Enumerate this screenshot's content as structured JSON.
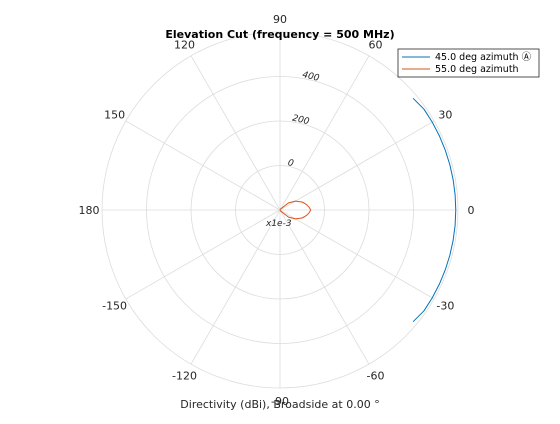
{
  "chart_data": {
    "type": "polar-line",
    "title": "Elevation Cut (frequency = 500 MHz)",
    "xlabel": "Directivity (dBi), Broadside at 0.00 °",
    "angle_ticks": [
      "90",
      "60",
      "30",
      "0",
      "-30",
      "-60",
      "-90",
      "-120",
      "-150",
      "180",
      "150",
      "120"
    ],
    "angle_tick_values": [
      90,
      60,
      30,
      0,
      -30,
      -60,
      -90,
      -120,
      -150,
      180,
      150,
      120
    ],
    "radial_ticks": [
      "0",
      "200",
      "400"
    ],
    "radial_tick_values": [
      0,
      200,
      400
    ],
    "radial_scale_note": "x1e-3",
    "rlim": [
      -200,
      600
    ],
    "grid": true,
    "legend_position": "top-right",
    "series": [
      {
        "name": "45.0 deg azimuth Ⓐ",
        "color": "#0072BD",
        "angles": [
          -40,
          -35,
          -30,
          -25,
          -20,
          -15,
          -10,
          -5,
          0,
          5,
          10,
          15,
          20,
          25,
          30,
          35,
          40
        ],
        "values": [
          581,
          590,
          590,
          590,
          590,
          590,
          590,
          590,
          590,
          590,
          590,
          590,
          590,
          590,
          590,
          590,
          581
        ]
      },
      {
        "name": "55.0 deg azimuth",
        "color": "#D95319",
        "angles": [
          -90,
          -60,
          -40,
          -30,
          -20,
          -15,
          -10,
          -5,
          0,
          5,
          10,
          15,
          20,
          30,
          40,
          60,
          90,
          180
        ],
        "values": [
          -200,
          -195,
          -150,
          -120,
          -95,
          -85,
          -76,
          -68,
          -62,
          -68,
          -76,
          -85,
          -95,
          -120,
          -150,
          -195,
          -200,
          -200
        ]
      }
    ]
  }
}
